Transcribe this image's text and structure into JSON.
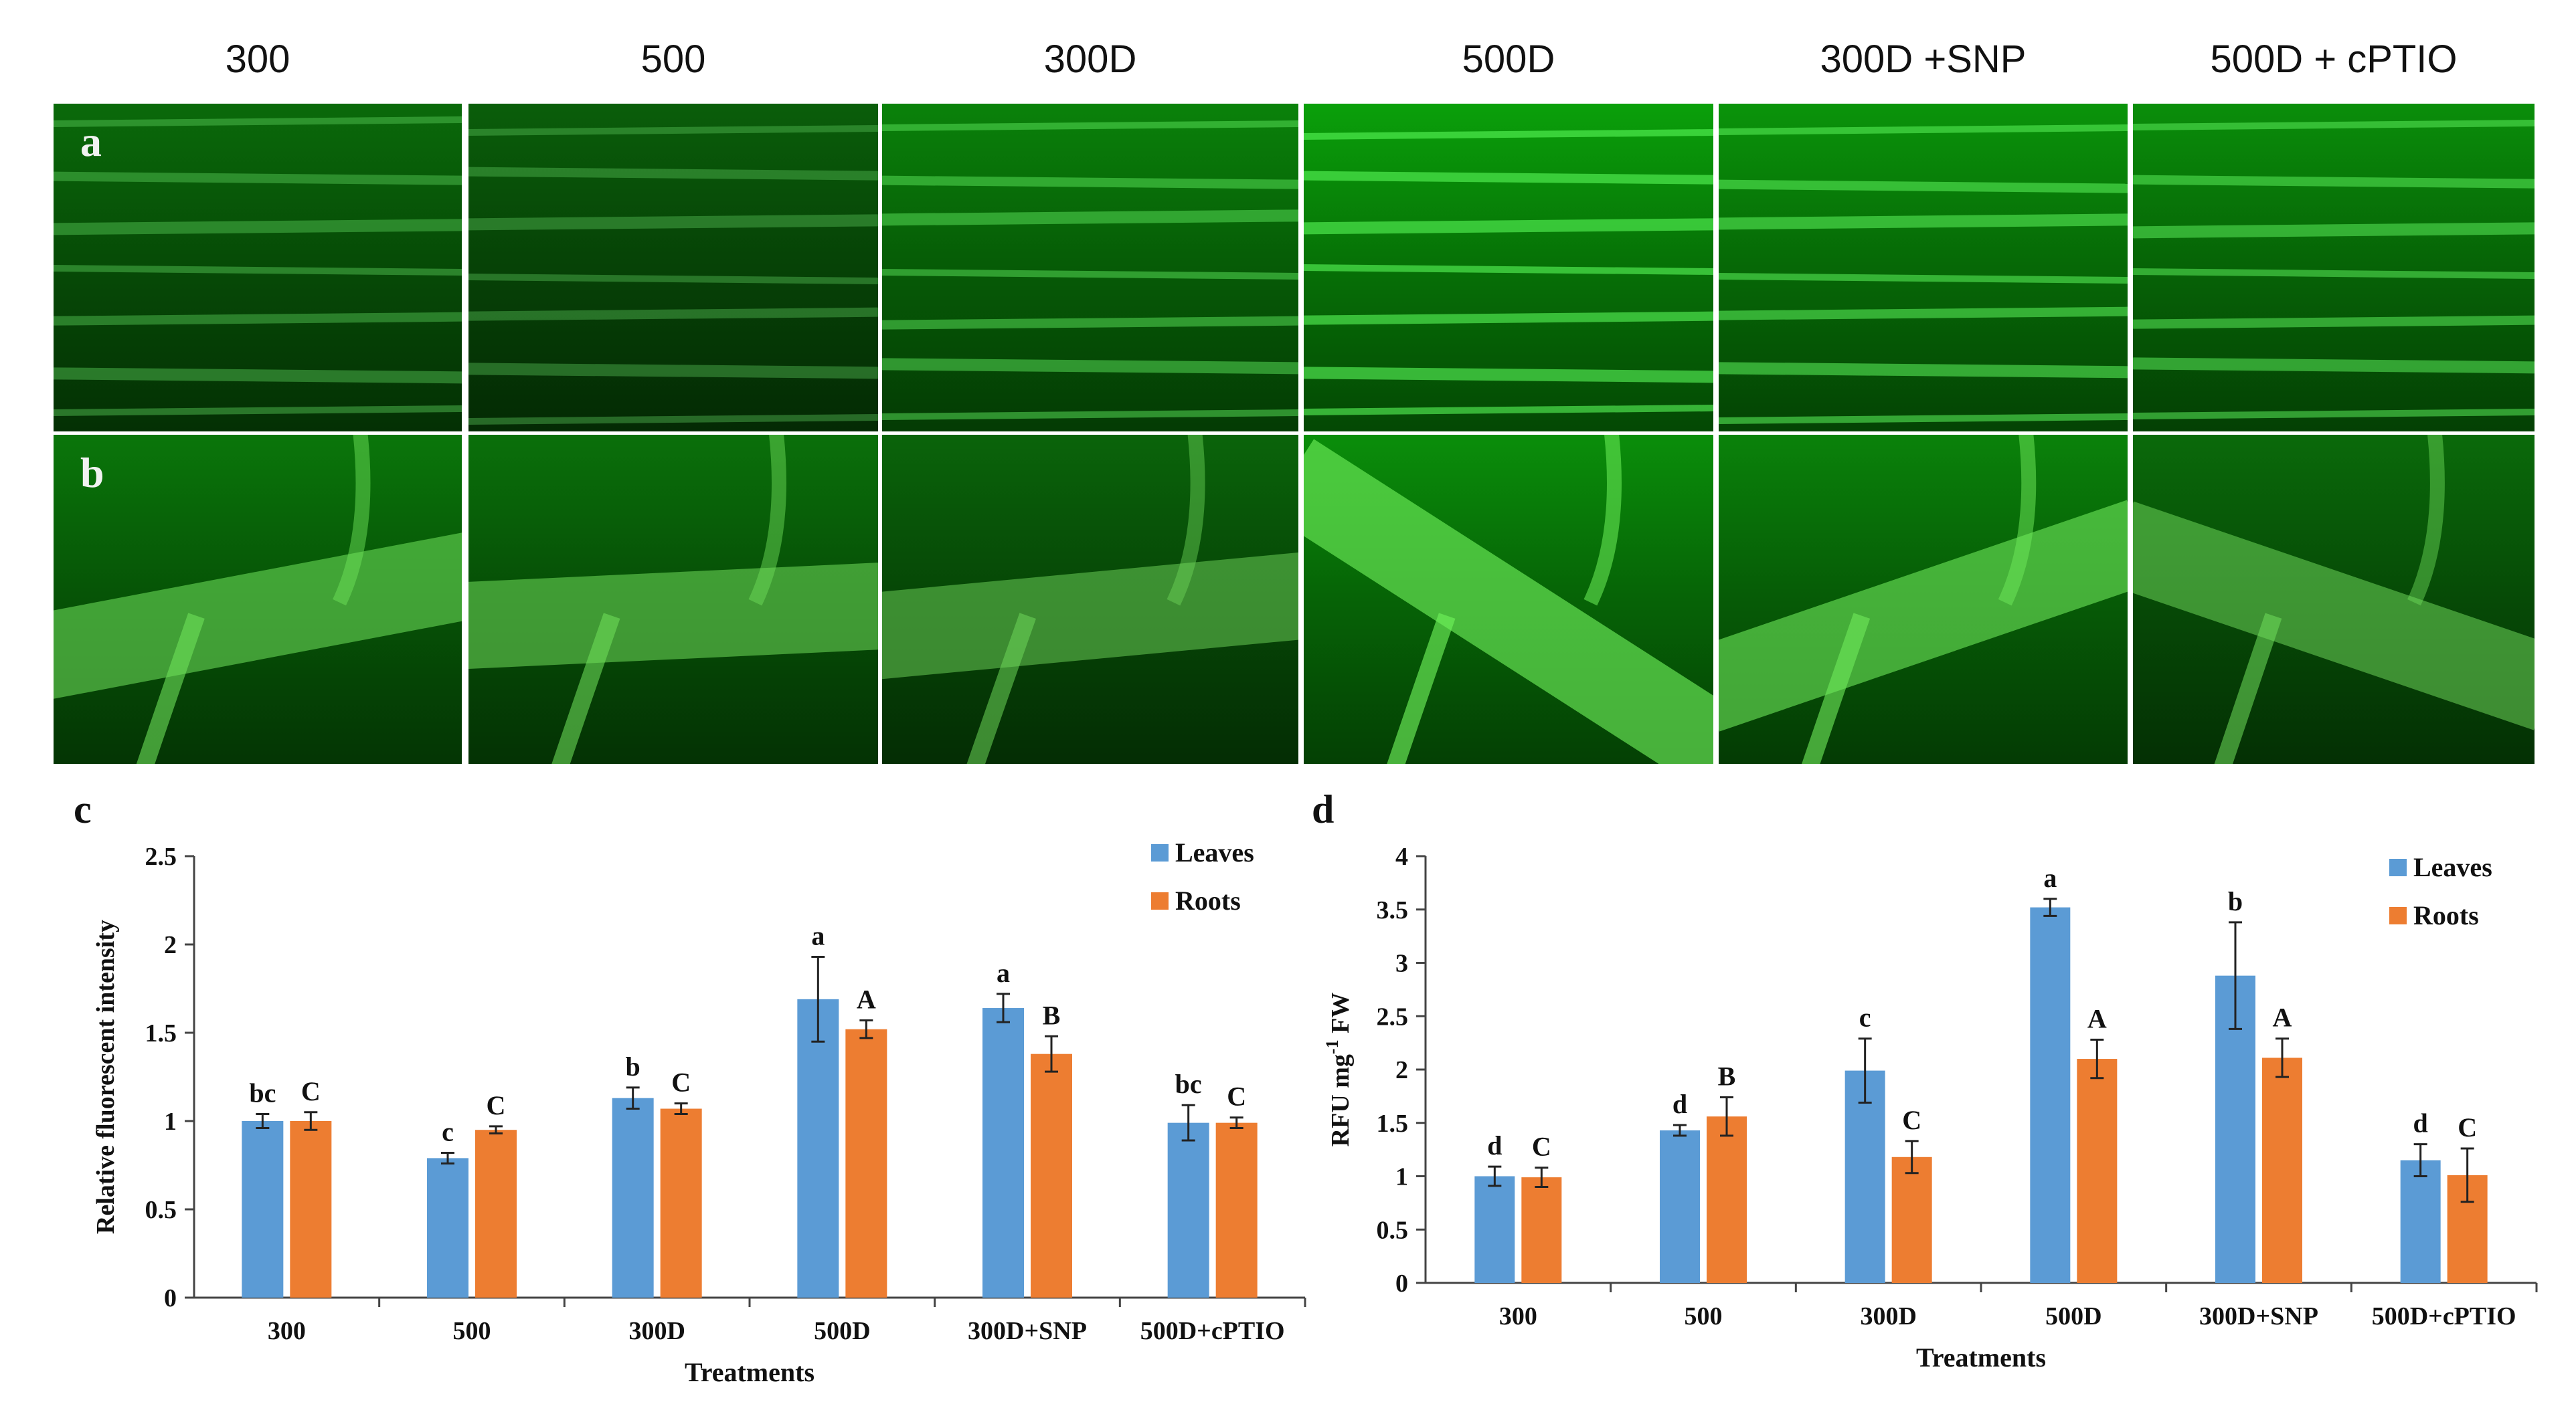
{
  "columns": [
    "300",
    "500",
    "300D",
    "500D",
    "300D +SNP",
    "500D + cPTIO"
  ],
  "rows": [
    {
      "letter": "a",
      "tissue": "leaf"
    },
    {
      "letter": "b",
      "tissue": "root"
    }
  ],
  "colors": {
    "leaves": "#5b9bd5",
    "roots": "#ed7d31",
    "fluor": "#3ad23a"
  },
  "chart_data": [
    {
      "panel": "c",
      "type": "bar",
      "categories": [
        "300",
        "500",
        "300D",
        "500D",
        "300D+SNP",
        "500D+cPTIO"
      ],
      "xlabel": "Treatments",
      "ylabel": "Relative fluorescent intensity",
      "ylim": [
        0,
        2.5
      ],
      "yticks": [
        "0",
        "0.5",
        "1",
        "1.5",
        "2",
        "2.5"
      ],
      "legend_position": "top-right",
      "series": [
        {
          "name": "Leaves",
          "values": [
            1.0,
            0.79,
            1.13,
            1.69,
            1.64,
            0.99
          ],
          "errors": [
            0.04,
            0.03,
            0.06,
            0.24,
            0.08,
            0.1
          ],
          "letters": [
            "bc",
            "c",
            "b",
            "a",
            "a",
            "bc"
          ]
        },
        {
          "name": "Roots",
          "values": [
            1.0,
            0.95,
            1.07,
            1.52,
            1.38,
            0.99
          ],
          "errors": [
            0.05,
            0.02,
            0.03,
            0.05,
            0.1,
            0.03
          ],
          "letters": [
            "C",
            "C",
            "C",
            "A",
            "B",
            "C"
          ]
        }
      ]
    },
    {
      "panel": "d",
      "type": "bar",
      "categories": [
        "300",
        "500",
        "300D",
        "500D",
        "300D+SNP",
        "500D+cPTIO"
      ],
      "xlabel": "Treatments",
      "ylabel": "RFU mg",
      "ylabel_sup": "-1",
      "ylabel_tail": " FW",
      "ylim": [
        0,
        4
      ],
      "yticks": [
        "0",
        "0.5",
        "1",
        "1.5",
        "2",
        "2.5",
        "3",
        "3.5",
        "4"
      ],
      "legend_position": "top-right",
      "series": [
        {
          "name": "Leaves",
          "values": [
            1.0,
            1.43,
            1.99,
            3.52,
            2.88,
            1.15
          ],
          "errors": [
            0.09,
            0.05,
            0.3,
            0.08,
            0.5,
            0.15
          ],
          "letters": [
            "d",
            "d",
            "c",
            "a",
            "b",
            "d"
          ]
        },
        {
          "name": "Roots",
          "values": [
            0.99,
            1.56,
            1.18,
            2.1,
            2.11,
            1.01
          ],
          "errors": [
            0.09,
            0.18,
            0.15,
            0.18,
            0.18,
            0.25
          ],
          "letters": [
            "C",
            "B",
            "C",
            "A",
            "A",
            "C"
          ]
        }
      ]
    }
  ]
}
